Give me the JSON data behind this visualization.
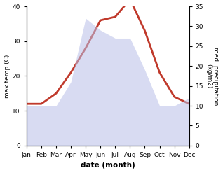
{
  "months": [
    "Jan",
    "Feb",
    "Mar",
    "Apr",
    "May",
    "Jun",
    "Jul",
    "Aug",
    "Sep",
    "Oct",
    "Nov",
    "Dec"
  ],
  "temperature": [
    12,
    12,
    15,
    21,
    28,
    36,
    37,
    42,
    33,
    21,
    14,
    12
  ],
  "precipitation": [
    10,
    10,
    10,
    16,
    32,
    29,
    27,
    27,
    19,
    10,
    10,
    12
  ],
  "temp_color": "#c0392b",
  "precip_fill_color": "#b8bfe8",
  "temp_ylim": [
    0,
    40
  ],
  "precip_ylim": [
    0,
    35
  ],
  "temp_yticks": [
    0,
    10,
    20,
    30,
    40
  ],
  "precip_yticks": [
    0,
    5,
    10,
    15,
    20,
    25,
    30,
    35
  ],
  "xlabel": "date (month)",
  "ylabel_left": "max temp (C)",
  "ylabel_right": "med. precipitation\n(kg/m2)",
  "bg_color": "#ffffff",
  "line_width": 2.0,
  "fill_alpha": 0.55
}
